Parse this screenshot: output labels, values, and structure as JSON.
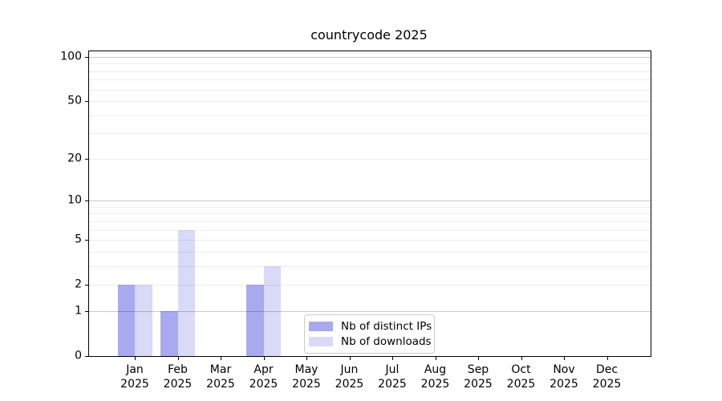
{
  "chart_data": {
    "type": "bar",
    "title": "countrycode 2025",
    "x_categories": [
      "Jan",
      "Feb",
      "Mar",
      "Apr",
      "May",
      "Jun",
      "Jul",
      "Aug",
      "Sep",
      "Oct",
      "Nov",
      "Dec"
    ],
    "x_sublabel": "2025",
    "series": [
      {
        "name": "Nb of distinct IPs",
        "color": "#a9a9f0",
        "values": [
          2,
          1,
          0,
          2,
          0,
          0,
          0,
          0,
          0,
          0,
          0,
          0
        ]
      },
      {
        "name": "Nb of downloads",
        "color": "#d9d9f8",
        "values": [
          2,
          6,
          0,
          3,
          0,
          0,
          0,
          0,
          0,
          0,
          0,
          0
        ]
      }
    ],
    "y_axis": {
      "scale": "log10(1+value)",
      "tick_values": [
        0,
        1,
        2,
        5,
        10,
        20,
        50,
        100
      ],
      "top_value": 109,
      "major_gridlines": [
        1,
        10,
        100
      ],
      "minor_gridlines": [
        2,
        3,
        4,
        5,
        6,
        7,
        8,
        9,
        20,
        30,
        40,
        50,
        60,
        70,
        80,
        90
      ]
    },
    "legend": {
      "position": "inside-bottom-center",
      "entries": [
        {
          "label": "Nb of distinct IPs",
          "color": "#a9a9f0"
        },
        {
          "label": "Nb of downloads",
          "color": "#d9d9f8"
        }
      ]
    },
    "grid": "on"
  },
  "colors": {
    "background": "#ffffff",
    "axis": "#000000",
    "text": "#000000",
    "legend_border": "#cccccc"
  }
}
